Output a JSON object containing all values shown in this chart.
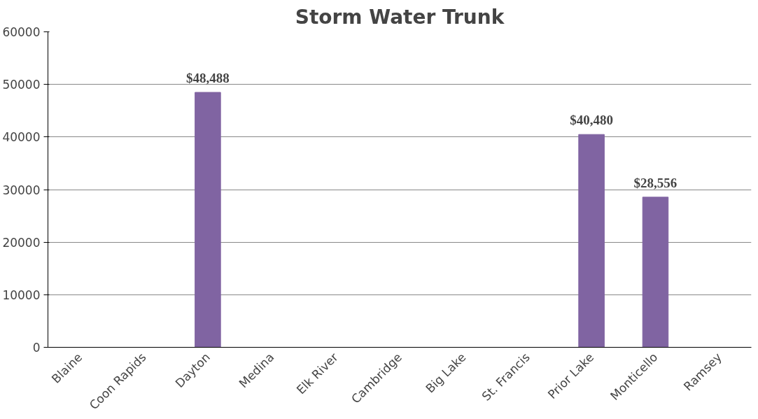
{
  "chart_data": {
    "type": "bar",
    "title": "Storm Water Trunk",
    "categories": [
      "Blaine",
      "Coon Rapids",
      "Dayton",
      "Medina",
      "Elk River",
      "Cambridge",
      "Big Lake",
      "St. Francis",
      "Prior Lake",
      "Monticello",
      "Ramsey"
    ],
    "values": [
      null,
      null,
      48488,
      null,
      null,
      null,
      null,
      null,
      40480,
      28556,
      null
    ],
    "value_labels": [
      null,
      null,
      "$48,488",
      null,
      null,
      null,
      null,
      null,
      "$40,480",
      "$28,556",
      null
    ],
    "color": "#8064a2",
    "ylim": [
      0,
      60000
    ],
    "yticks": [
      0,
      10000,
      20000,
      30000,
      40000,
      50000,
      60000
    ],
    "grid": "y"
  }
}
